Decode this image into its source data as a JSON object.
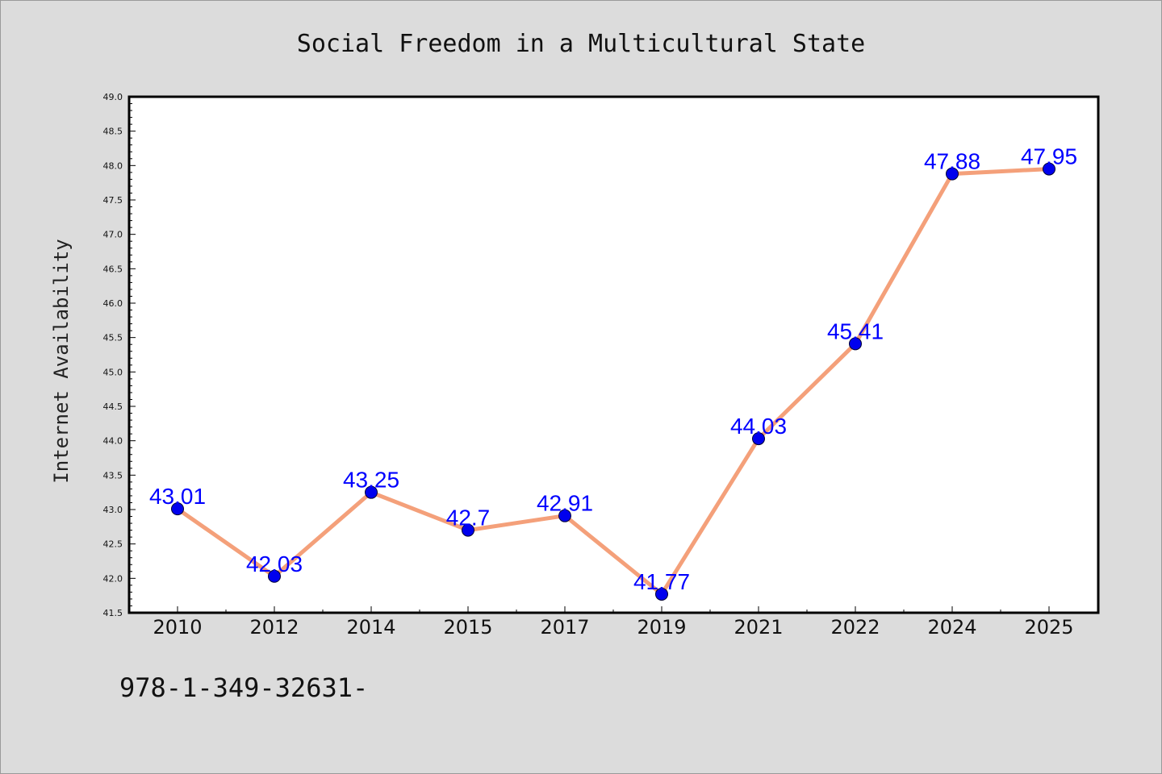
{
  "chart_data": {
    "type": "line",
    "title": "Social Freedom in a Multicultural State",
    "xlabel": "",
    "ylabel": "Internet Availability",
    "categories": [
      "2010",
      "2012",
      "2014",
      "2015",
      "2017",
      "2019",
      "2021",
      "2022",
      "2024",
      "2025"
    ],
    "series": [
      {
        "values": [
          43.01,
          42.03,
          43.25,
          42.7,
          42.91,
          41.77,
          44.03,
          45.41,
          47.88,
          47.95
        ],
        "data_labels": [
          "43.01",
          "42.03",
          "43.25",
          "42.7",
          "42.91",
          "41.77",
          "44.03",
          "45.41",
          "47.88",
          "47.95"
        ],
        "line_color": "#f4a07a",
        "marker_color": "#0000ee",
        "label_color": "#0000ff"
      }
    ],
    "ylim": [
      41.5,
      49.0
    ],
    "yticks": [
      "41.5",
      "42.0",
      "42.5",
      "43.0",
      "43.5",
      "44.0",
      "44.5",
      "45.0",
      "45.5",
      "46.0",
      "46.5",
      "47.0",
      "47.5",
      "48.0",
      "48.5",
      "49.0"
    ],
    "grid": false,
    "legend": "none"
  },
  "footer": {
    "text": "978-1-349-32631-"
  }
}
